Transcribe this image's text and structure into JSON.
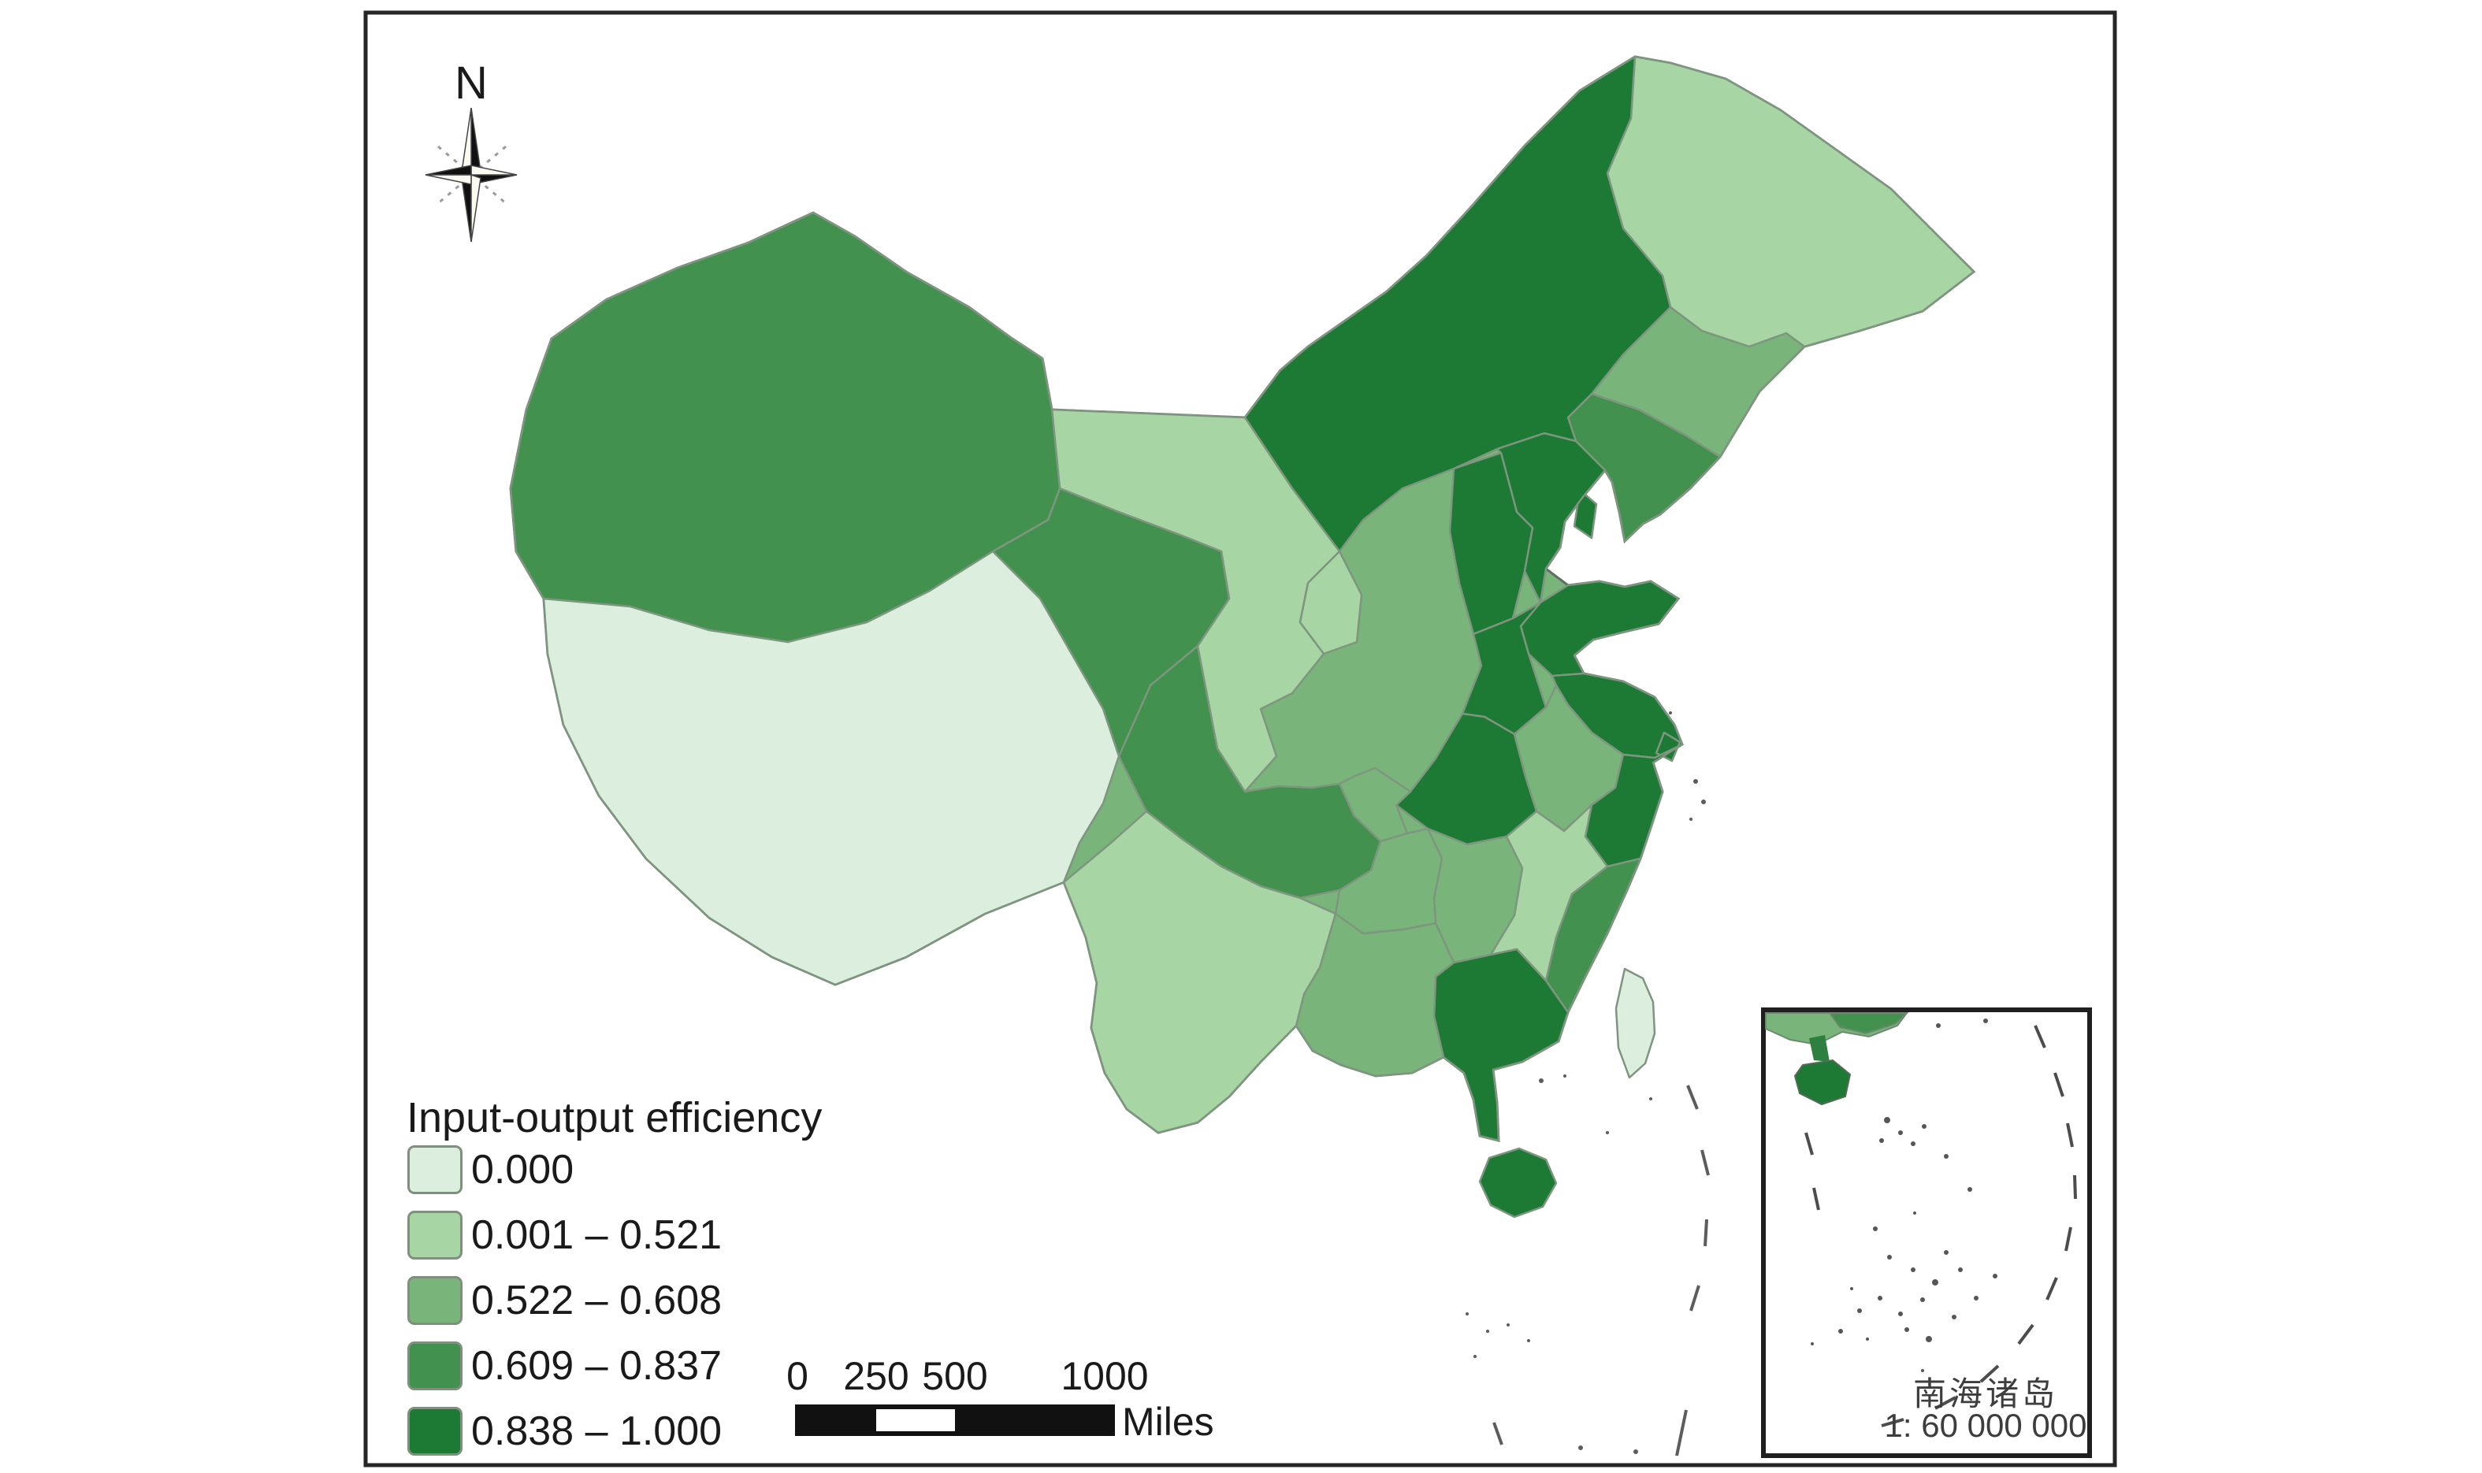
{
  "figure": {
    "background": "#ffffff",
    "frame_color": "#262626"
  },
  "compass": {
    "label": "N"
  },
  "legend": {
    "title": "Input-output efficiency",
    "items": [
      {
        "label": "0.000",
        "color": "#dceede"
      },
      {
        "label": "0.001 – 0.521",
        "color": "#a7d6a4"
      },
      {
        "label": "0.522 – 0.608",
        "color": "#79b47a"
      },
      {
        "label": "0.609 – 0.837",
        "color": "#42914f"
      },
      {
        "label": "0.838 – 1.000",
        "color": "#1c7a34"
      }
    ]
  },
  "scale_bar": {
    "tick_labels": [
      "0",
      "250",
      "500",
      "1000"
    ],
    "unit": "Miles"
  },
  "inset": {
    "title": "南海诸岛",
    "scale_text": "1: 60 000 000"
  },
  "chart_data": {
    "type": "choropleth_map",
    "title": "Input-output efficiency",
    "region_set": "Provinces of China",
    "legend_position": "bottom-left",
    "classes": [
      {
        "label": "0.000",
        "color": "#dceede"
      },
      {
        "label": "0.001 – 0.521",
        "color": "#a7d6a4"
      },
      {
        "label": "0.522 – 0.608",
        "color": "#79b47a"
      },
      {
        "label": "0.609 – 0.837",
        "color": "#42914f"
      },
      {
        "label": "0.838 – 1.000",
        "color": "#1c7a34"
      }
    ],
    "regions": [
      {
        "name": "Heilongjiang",
        "class": "0.001 – 0.521"
      },
      {
        "name": "Jilin",
        "class": "0.522 – 0.608"
      },
      {
        "name": "Liaoning",
        "class": "0.609 – 0.837"
      },
      {
        "name": "Inner Mongolia",
        "class": "0.838 – 1.000"
      },
      {
        "name": "Beijing",
        "class": "0.838 – 1.000"
      },
      {
        "name": "Tianjin",
        "class": "0.838 – 1.000"
      },
      {
        "name": "Hebei",
        "class": "0.838 – 1.000"
      },
      {
        "name": "Shanxi",
        "class": "0.838 – 1.000"
      },
      {
        "name": "Shandong",
        "class": "0.838 – 1.000"
      },
      {
        "name": "Henan",
        "class": "0.838 – 1.000"
      },
      {
        "name": "Jiangsu",
        "class": "0.838 – 1.000"
      },
      {
        "name": "Shanghai",
        "class": "0.838 – 1.000"
      },
      {
        "name": "Anhui",
        "class": "0.522 – 0.608"
      },
      {
        "name": "Zhejiang",
        "class": "0.838 – 1.000"
      },
      {
        "name": "Hubei",
        "class": "0.838 – 1.000"
      },
      {
        "name": "Jiangxi",
        "class": "0.001 – 0.521"
      },
      {
        "name": "Hunan",
        "class": "0.522 – 0.608"
      },
      {
        "name": "Fujian",
        "class": "0.609 – 0.837"
      },
      {
        "name": "Guangdong",
        "class": "0.838 – 1.000"
      },
      {
        "name": "Guangxi",
        "class": "0.522 – 0.608"
      },
      {
        "name": "Hainan",
        "class": "0.838 – 1.000"
      },
      {
        "name": "Chongqing",
        "class": "0.522 – 0.608"
      },
      {
        "name": "Sichuan",
        "class": "0.609 – 0.837"
      },
      {
        "name": "Guizhou",
        "class": "0.522 – 0.608"
      },
      {
        "name": "Yunnan",
        "class": "0.001 – 0.521"
      },
      {
        "name": "Shaanxi",
        "class": "0.609 – 0.837"
      },
      {
        "name": "Gansu",
        "class": "0.001 – 0.521"
      },
      {
        "name": "Qinghai",
        "class": "0.609 – 0.837"
      },
      {
        "name": "Ningxia",
        "class": "0.001 – 0.521"
      },
      {
        "name": "Xinjiang",
        "class": "0.609 – 0.837"
      },
      {
        "name": "Tibet",
        "class": "0.000"
      },
      {
        "name": "Taiwan",
        "class": "0.000"
      }
    ]
  }
}
